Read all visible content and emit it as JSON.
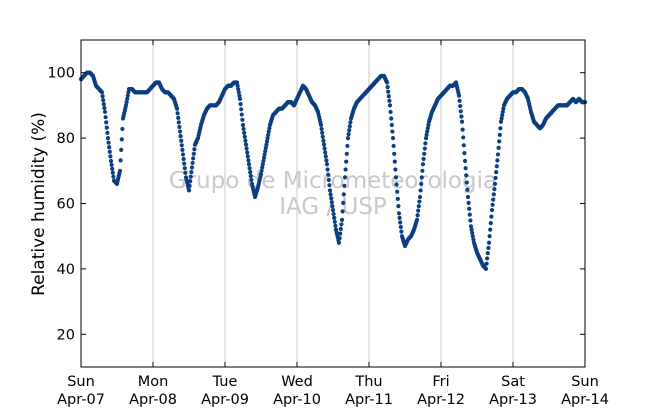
{
  "chart_data": {
    "type": "scatter",
    "title": "",
    "xlabel": "",
    "ylabel": "Relative humidity (%)",
    "xlim": [
      "2013-04-07T00:00",
      "2013-04-14T00:00"
    ],
    "ylim": [
      10,
      110
    ],
    "yticks": [
      20,
      40,
      60,
      80,
      100
    ],
    "xticks": [
      {
        "day": "Sun",
        "date": "Apr-07"
      },
      {
        "day": "Mon",
        "date": "Apr-08"
      },
      {
        "day": "Tue",
        "date": "Apr-09"
      },
      {
        "day": "Wed",
        "date": "Apr-10"
      },
      {
        "day": "Thu",
        "date": "Apr-11"
      },
      {
        "day": "Fri",
        "date": "Apr-12"
      },
      {
        "day": "Sat",
        "date": "Apr-13"
      },
      {
        "day": "Sun",
        "date": "Apr-14"
      }
    ],
    "grid": "vertical",
    "marker_color": "#0b3f7f",
    "watermark": [
      "Grupo de Micrometeorologia",
      "IAG / USP"
    ],
    "series": [
      {
        "x": [
          "04-07 00:00",
          "04-07 01:00",
          "04-07 02:00",
          "04-07 03:00",
          "04-07 04:00",
          "04-07 05:00",
          "04-07 06:00",
          "04-07 07:00",
          "04-07 08:00",
          "04-07 09:00",
          "04-07 10:00",
          "04-07 11:00",
          "04-07 12:00",
          "04-07 13:00",
          "04-07 14:00",
          "04-07 15:00",
          "04-07 16:00",
          "04-07 17:00",
          "04-07 18:00",
          "04-07 19:00",
          "04-07 20:00",
          "04-07 21:00",
          "04-07 22:00",
          "04-07 23:00",
          "04-08 00:00",
          "04-08 01:00",
          "04-08 02:00",
          "04-08 03:00",
          "04-08 04:00",
          "04-08 05:00",
          "04-08 06:00",
          "04-08 07:00",
          "04-08 08:00",
          "04-08 09:00",
          "04-08 10:00",
          "04-08 11:00",
          "04-08 12:00",
          "04-08 13:00",
          "04-08 14:00",
          "04-08 15:00",
          "04-08 16:00",
          "04-08 17:00",
          "04-08 18:00",
          "04-08 19:00",
          "04-08 20:00",
          "04-08 21:00",
          "04-08 22:00",
          "04-08 23:00",
          "04-09 00:00",
          "04-09 01:00",
          "04-09 02:00",
          "04-09 03:00",
          "04-09 04:00",
          "04-09 05:00",
          "04-09 06:00",
          "04-09 07:00",
          "04-09 08:00",
          "04-09 09:00",
          "04-09 10:00",
          "04-09 11:00",
          "04-09 12:00",
          "04-09 13:00",
          "04-09 14:00",
          "04-09 15:00",
          "04-09 16:00",
          "04-09 17:00",
          "04-09 18:00",
          "04-09 19:00",
          "04-09 20:00",
          "04-09 21:00",
          "04-09 22:00",
          "04-09 23:00",
          "04-10 00:00",
          "04-10 01:00",
          "04-10 02:00",
          "04-10 03:00",
          "04-10 04:00",
          "04-10 05:00",
          "04-10 06:00",
          "04-10 07:00",
          "04-10 08:00",
          "04-10 09:00",
          "04-10 10:00",
          "04-10 11:00",
          "04-10 12:00",
          "04-10 13:00",
          "04-10 14:00",
          "04-10 15:00",
          "04-10 16:00",
          "04-10 17:00",
          "04-10 18:00",
          "04-10 19:00",
          "04-10 20:00",
          "04-10 21:00",
          "04-10 22:00",
          "04-10 23:00",
          "04-11 00:00",
          "04-11 01:00",
          "04-11 02:00",
          "04-11 03:00",
          "04-11 04:00",
          "04-11 05:00",
          "04-11 06:00",
          "04-11 07:00",
          "04-11 08:00",
          "04-11 09:00",
          "04-11 10:00",
          "04-11 11:00",
          "04-11 12:00",
          "04-11 13:00",
          "04-11 14:00",
          "04-11 15:00",
          "04-11 16:00",
          "04-11 17:00",
          "04-11 18:00",
          "04-11 19:00",
          "04-11 20:00",
          "04-11 21:00",
          "04-11 22:00",
          "04-11 23:00",
          "04-12 00:00",
          "04-12 01:00",
          "04-12 02:00",
          "04-12 03:00",
          "04-12 04:00",
          "04-12 05:00",
          "04-12 06:00",
          "04-12 07:00",
          "04-12 08:00",
          "04-12 09:00",
          "04-12 10:00",
          "04-12 11:00",
          "04-12 12:00",
          "04-12 13:00",
          "04-12 14:00",
          "04-12 15:00",
          "04-12 16:00",
          "04-12 17:00",
          "04-12 18:00",
          "04-12 19:00",
          "04-12 20:00",
          "04-12 21:00",
          "04-12 22:00",
          "04-12 23:00",
          "04-13 00:00",
          "04-13 01:00",
          "04-13 02:00",
          "04-13 03:00",
          "04-13 04:00",
          "04-13 05:00",
          "04-13 06:00",
          "04-13 07:00",
          "04-13 08:00",
          "04-13 09:00",
          "04-13 10:00",
          "04-13 11:00",
          "04-13 12:00",
          "04-13 13:00",
          "04-13 14:00",
          "04-13 15:00",
          "04-13 16:00",
          "04-13 17:00",
          "04-13 18:00",
          "04-13 19:00",
          "04-13 20:00",
          "04-13 21:00",
          "04-13 22:00",
          "04-13 23:00",
          "04-14 00:00"
        ],
        "y": [
          98,
          99,
          100,
          100,
          99,
          96,
          95,
          94,
          88,
          80,
          73,
          67,
          66,
          70,
          86,
          90,
          95,
          95,
          94,
          94,
          94,
          94,
          94,
          95,
          96,
          97,
          97,
          95,
          94,
          94,
          93,
          92,
          89,
          82,
          75,
          68,
          64,
          71,
          78,
          80,
          84,
          87,
          89,
          90,
          90,
          90,
          91,
          93,
          95,
          96,
          96,
          97,
          97,
          92,
          84,
          78,
          72,
          66,
          62,
          65,
          69,
          74,
          79,
          84,
          87,
          88,
          89,
          89,
          90,
          91,
          91,
          90,
          92,
          94,
          96,
          95,
          93,
          91,
          90,
          88,
          84,
          78,
          72,
          64,
          58,
          52,
          48,
          55,
          68,
          80,
          86,
          89,
          91,
          92,
          93,
          94,
          95,
          96,
          97,
          98,
          99,
          99,
          97,
          90,
          80,
          68,
          57,
          50,
          47,
          49,
          50,
          52,
          55,
          62,
          72,
          80,
          85,
          88,
          90,
          92,
          93,
          94,
          95,
          96,
          96,
          97,
          93,
          85,
          73,
          62,
          53,
          48,
          45,
          43,
          41,
          40,
          48,
          58,
          66,
          75,
          85,
          90,
          92,
          93,
          94,
          94,
          95,
          95,
          94,
          92,
          88,
          85,
          84,
          83,
          84,
          86,
          87,
          88,
          89,
          90,
          90,
          90,
          90,
          91,
          92,
          91,
          92,
          91,
          91
        ]
      }
    ]
  }
}
